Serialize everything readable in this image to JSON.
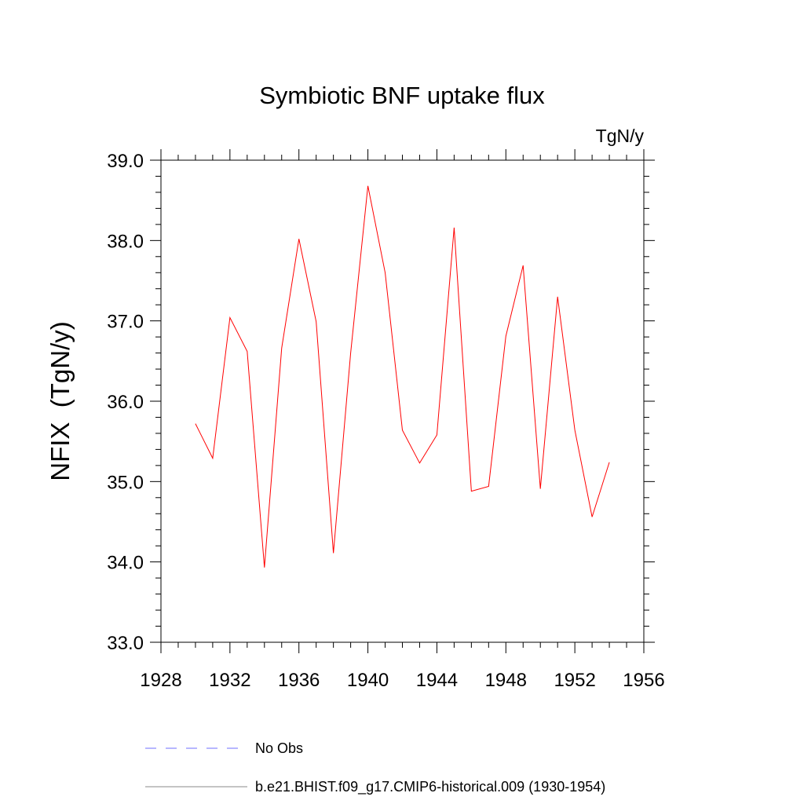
{
  "chart_data": {
    "type": "line",
    "title": "Symbiotic BNF uptake flux",
    "units_label": "TgN/y",
    "ylabel": "NFIX  (TgN/y)",
    "xlabel": "",
    "xlim": [
      1928,
      1956
    ],
    "ylim": [
      33.0,
      39.0
    ],
    "xticks": [
      "1928",
      "1932",
      "1936",
      "1940",
      "1944",
      "1948",
      "1952",
      "1956"
    ],
    "yticks": [
      "33.0",
      "34.0",
      "35.0",
      "36.0",
      "37.0",
      "38.0",
      "39.0"
    ],
    "grid": false,
    "legend_placement": "bottom",
    "x": [
      1930,
      1931,
      1932,
      1933,
      1934,
      1935,
      1936,
      1937,
      1938,
      1939,
      1940,
      1941,
      1942,
      1943,
      1944,
      1945,
      1946,
      1947,
      1948,
      1949,
      1950,
      1951,
      1952,
      1953,
      1954
    ],
    "series": [
      {
        "name": "b.e21.BHIST.f09_g17.CMIP6-historical.009 (1930-1954)",
        "color": "#ff0000",
        "values": [
          35.72,
          35.29,
          37.04,
          36.62,
          33.93,
          36.66,
          38.02,
          36.99,
          34.11,
          36.6,
          38.68,
          37.6,
          35.64,
          35.23,
          35.58,
          38.16,
          34.88,
          34.94,
          36.81,
          37.69,
          34.91,
          37.3,
          35.64,
          34.56,
          35.24
        ]
      }
    ],
    "legend": [
      {
        "label": "No Obs",
        "color": "#6f6fff",
        "style": "dashed"
      },
      {
        "label": "b.e21.BHIST.f09_g17.CMIP6-historical.009 (1930-1954)",
        "color": "#888888",
        "style": "solid"
      }
    ]
  }
}
